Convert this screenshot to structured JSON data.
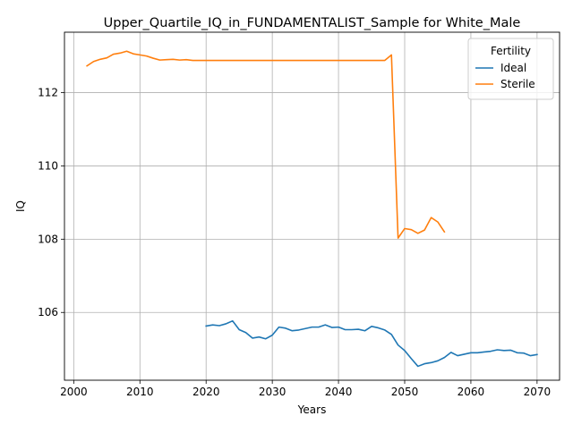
{
  "chart_data": {
    "type": "line",
    "title": "Upper_Quartile_IQ_in_FUNDAMENTALIST_Sample for White_Male",
    "xlabel": "Years",
    "ylabel": "IQ",
    "xlim": [
      1998.6,
      2073.4
    ],
    "ylim": [
      104.15,
      113.65
    ],
    "xticks": [
      2000,
      2010,
      2020,
      2030,
      2040,
      2050,
      2060,
      2070
    ],
    "yticks": [
      106,
      108,
      110,
      112
    ],
    "grid": true,
    "legend": {
      "title": "Fertility",
      "placement": "top-right"
    },
    "series": [
      {
        "name": "Ideal",
        "color": "#1f77b4",
        "x": [
          2020,
          2021,
          2022,
          2023,
          2024,
          2025,
          2026,
          2027,
          2028,
          2029,
          2030,
          2031,
          2032,
          2033,
          2034,
          2035,
          2036,
          2037,
          2038,
          2039,
          2040,
          2041,
          2042,
          2043,
          2044,
          2045,
          2046,
          2047,
          2048,
          2049,
          2050,
          2051,
          2052,
          2053,
          2054,
          2055,
          2056,
          2057,
          2058,
          2059,
          2060,
          2061,
          2062,
          2063,
          2064,
          2065,
          2066,
          2067,
          2068,
          2069,
          2070
        ],
        "y": [
          105.63,
          105.66,
          105.64,
          105.69,
          105.77,
          105.53,
          105.45,
          105.3,
          105.33,
          105.28,
          105.38,
          105.6,
          105.57,
          105.5,
          105.52,
          105.56,
          105.6,
          105.6,
          105.66,
          105.59,
          105.6,
          105.53,
          105.53,
          105.54,
          105.5,
          105.62,
          105.58,
          105.52,
          105.4,
          105.11,
          104.96,
          104.74,
          104.53,
          104.6,
          104.63,
          104.68,
          104.77,
          104.91,
          104.82,
          104.86,
          104.9,
          104.9,
          104.92,
          104.94,
          104.98,
          104.96,
          104.97,
          104.9,
          104.89,
          104.82,
          104.85
        ]
      },
      {
        "name": "Sterile",
        "color": "#ff7f0e",
        "x": [
          2002,
          2003,
          2004,
          2005,
          2006,
          2007,
          2008,
          2009,
          2010,
          2011,
          2012,
          2013,
          2014,
          2015,
          2016,
          2017,
          2018,
          2019,
          2020,
          2021,
          2022,
          2023,
          2024,
          2025,
          2026,
          2027,
          2028,
          2029,
          2030,
          2031,
          2032,
          2033,
          2034,
          2035,
          2036,
          2037,
          2038,
          2039,
          2040,
          2041,
          2042,
          2043,
          2044,
          2045,
          2046,
          2047,
          2048,
          2049,
          2050,
          2051,
          2052,
          2053,
          2054,
          2055,
          2056
        ],
        "y": [
          112.73,
          112.85,
          112.91,
          112.95,
          113.05,
          113.08,
          113.13,
          113.06,
          113.03,
          113.0,
          112.94,
          112.89,
          112.9,
          112.91,
          112.89,
          112.9,
          112.88,
          112.88,
          112.88,
          112.88,
          112.88,
          112.88,
          112.88,
          112.88,
          112.88,
          112.88,
          112.88,
          112.88,
          112.88,
          112.88,
          112.88,
          112.88,
          112.88,
          112.88,
          112.88,
          112.88,
          112.88,
          112.88,
          112.88,
          112.88,
          112.88,
          112.88,
          112.88,
          112.88,
          112.88,
          112.88,
          113.03,
          108.03,
          108.29,
          108.26,
          108.16,
          108.25,
          108.59,
          108.47,
          108.2
        ]
      }
    ]
  }
}
